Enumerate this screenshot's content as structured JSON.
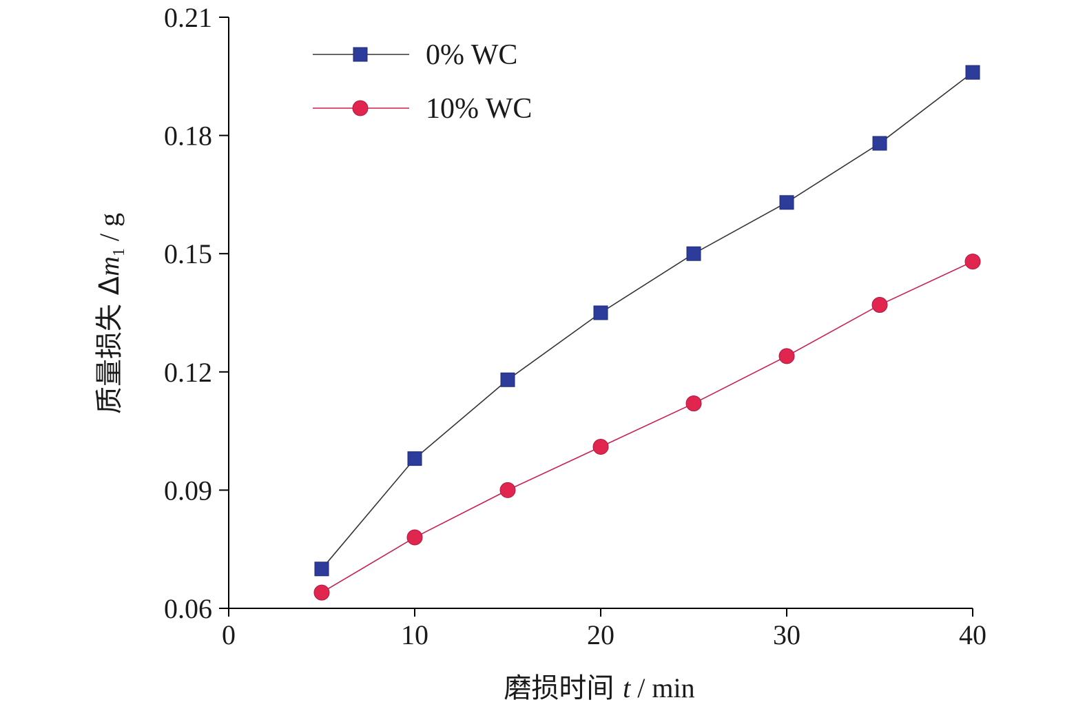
{
  "chart_data": {
    "type": "line",
    "xlabel": {
      "prefix": "磨损时间 ",
      "var": "t",
      "suffix": " / min"
    },
    "ylabel": {
      "prefix": "质量损失 Δ",
      "var": "m",
      "sub": "1",
      "suffix": " / g"
    },
    "xlim": [
      0,
      40
    ],
    "ylim": [
      0.06,
      0.21
    ],
    "xticks": [
      "0",
      "10",
      "20",
      "30",
      "40"
    ],
    "yticks": [
      "0.06",
      "0.09",
      "0.12",
      "0.15",
      "0.18",
      "0.21"
    ],
    "grid": false,
    "legend_position": "top-left",
    "series": [
      {
        "name": "0% WC",
        "marker": "square",
        "line_color": "#333333",
        "marker_color": "#2d3c9b",
        "x": [
          5,
          10,
          15,
          20,
          25,
          30,
          35,
          40
        ],
        "y": [
          0.07,
          0.098,
          0.118,
          0.135,
          0.15,
          0.163,
          0.178,
          0.196
        ]
      },
      {
        "name": "10% WC",
        "marker": "circle",
        "line_color": "#c8204e",
        "marker_color": "#e0254f",
        "x": [
          5,
          10,
          15,
          20,
          25,
          30,
          35,
          40
        ],
        "y": [
          0.064,
          0.078,
          0.09,
          0.101,
          0.112,
          0.124,
          0.137,
          0.148
        ]
      }
    ]
  }
}
